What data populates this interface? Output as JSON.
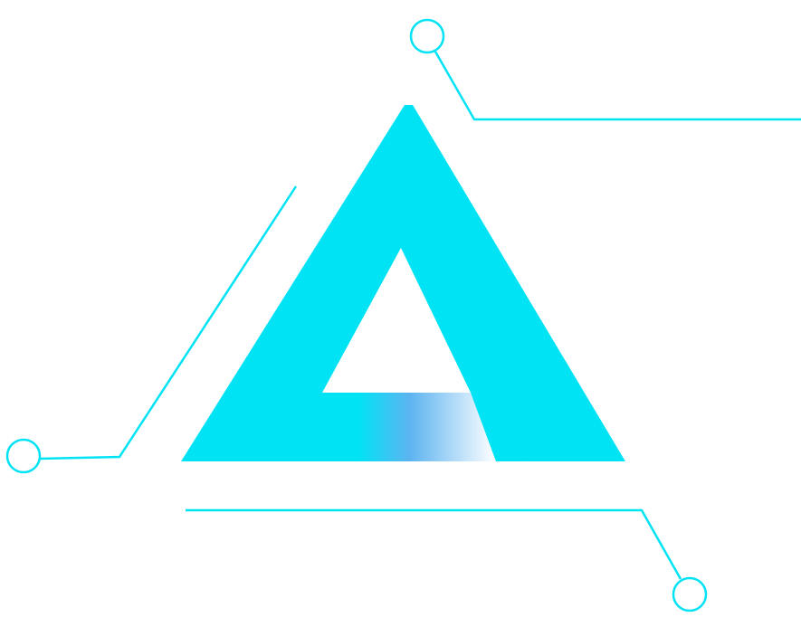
{
  "logo": {
    "name": "triangle-circuit-logo",
    "colors": {
      "primary": "#00E3F5",
      "gradient_end": "#FFFFFF",
      "gradient_mid": "#5DB4F0",
      "background": "#FFFFFF"
    }
  }
}
